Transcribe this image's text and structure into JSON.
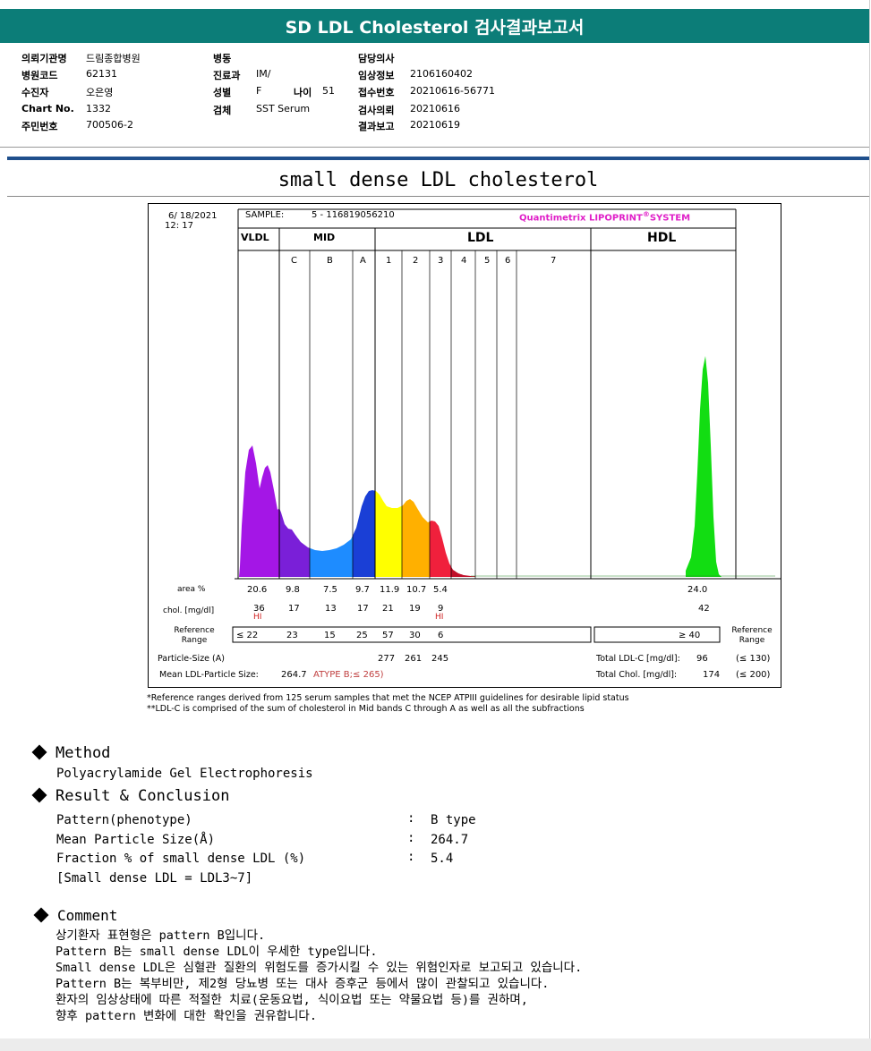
{
  "header": {
    "title": "SD LDL Cholesterol 검사결과보고서"
  },
  "info": {
    "institution_label": "의뢰기관명",
    "institution": "드림종합병원",
    "hospital_code_label": "병원코드",
    "hospital_code": "62131",
    "patient_label": "수진자",
    "patient": "오은영",
    "chart_no_label": "Chart No.",
    "chart_no": "1332",
    "resident_no_label": "주민번호",
    "resident_no": "700506-2",
    "ward_label": "병동",
    "ward": "",
    "department_label": "진료과",
    "department": "IM/",
    "sex_label": "성별",
    "sex": "F",
    "age_label": "나이",
    "age": "51",
    "specimen_label": "검체",
    "specimen": "SST Serum",
    "doctor_label": "담당의사",
    "doctor": "",
    "clinical_info_label": "임상정보",
    "clinical_info": "2106160402",
    "reception_no_label": "접수번호",
    "reception_no": "20210616-56771",
    "request_date_label": "검사의뢰",
    "request_date": "20210616",
    "report_date_label": "결과보고",
    "report_date": "20210619"
  },
  "section_title": "small dense LDL cholesterol",
  "chart_data": {
    "type": "area",
    "date": "6/ 18/2021",
    "time": "12: 17",
    "sample_label": "SAMPLE:",
    "sample_id": "5 - 116819056210",
    "system_name": "Quantimetrix LIPOPRINT",
    "system_suffix": "SYSTEM",
    "band_groups": [
      "VLDL",
      "MID",
      "LDL",
      "HDL"
    ],
    "band_labels": [
      "C",
      "B",
      "A",
      "1",
      "2",
      "3",
      "4",
      "5",
      "6",
      "7"
    ],
    "band_colors": {
      "VLDL": "#a416e6",
      "C": "#7a1fd8",
      "B": "#1e8cff",
      "A": "#1a3fd6",
      "LDL1": "#ffff00",
      "LDL2": "#ffb000",
      "LDL3": "#f0203c",
      "LDL4": "#c0102a",
      "HDL": "#12dd12"
    },
    "row_labels": {
      "area": "area %",
      "chol": "chol. [mg/dl]",
      "reference": "Reference Range",
      "particle_size": "Particle-Size (A)",
      "mean_size": "Mean LDL-Particle Size:"
    },
    "area_pct": [
      "20.6",
      "9.8",
      "7.5",
      "9.7",
      "11.9",
      "10.7",
      "5.4"
    ],
    "hdl_area_pct": "24.0",
    "chol_mg_dl": [
      "36",
      "17",
      "13",
      "17",
      "21",
      "19",
      "9"
    ],
    "hdl_chol": "42",
    "hi_flag": "HI",
    "hi_flags_on": [
      "VLDL",
      "LDL3"
    ],
    "reference_values": [
      "≤ 22",
      "23",
      "15",
      "25",
      "57",
      "30",
      "6"
    ],
    "hdl_reference": "≥ 40",
    "particle_sizes": [
      "277",
      "261",
      "245"
    ],
    "mean_particle_size": "264.7",
    "type_text": "ATYPE B;≤ 265)",
    "total_ldl_c_label": "Total LDL-C [mg/dl]:",
    "total_ldl_c": "96",
    "total_ldl_c_ref": "(≤ 130)",
    "total_chol_label": "Total Chol. [mg/dl]:",
    "total_chol": "174",
    "total_chol_ref": "(≤ 200)",
    "reference_side_label": "Reference Range"
  },
  "footnotes": [
    "*Reference ranges derived from 125 serum samples that met the NCEP ATPIII guidelines for desirable lipid status",
    "**LDL-C is comprised of the sum of cholesterol in Mid bands C through A as well as all the subfractions"
  ],
  "method": {
    "heading": "Method",
    "text": "Polyacrylamide Gel Electrophoresis"
  },
  "result": {
    "heading": "Result & Conclusion",
    "rows": [
      {
        "label": "Pattern(phenotype)",
        "value": "B type"
      },
      {
        "label": "Mean Particle Size(Å)",
        "value": "264.7"
      },
      {
        "label": "Fraction % of small dense LDL (%)",
        "value": "5.4"
      }
    ],
    "note": "[Small dense LDL = LDL3~7]",
    "colon": ":"
  },
  "comment": {
    "heading": "Comment",
    "lines": [
      "상기환자 표현형은 pattern B입니다.",
      "Pattern B는 small dense LDL이 우세한 type입니다.",
      "Small dense LDL은 심혈관 질환의 위험도를 증가시킬 수 있는 위험인자로 보고되고 있습니다.",
      "Pattern B는 복부비만, 제2형 당뇨병 또는 대사 증후군 등에서 많이 관찰되고 있습니다.",
      "환자의 임상상태에 따른 적절한 치료(운동요법, 식이요법 또는 약물요법 등)를 권하며,",
      "향후 pattern 변화에 대한 확인을 권유합니다."
    ]
  }
}
